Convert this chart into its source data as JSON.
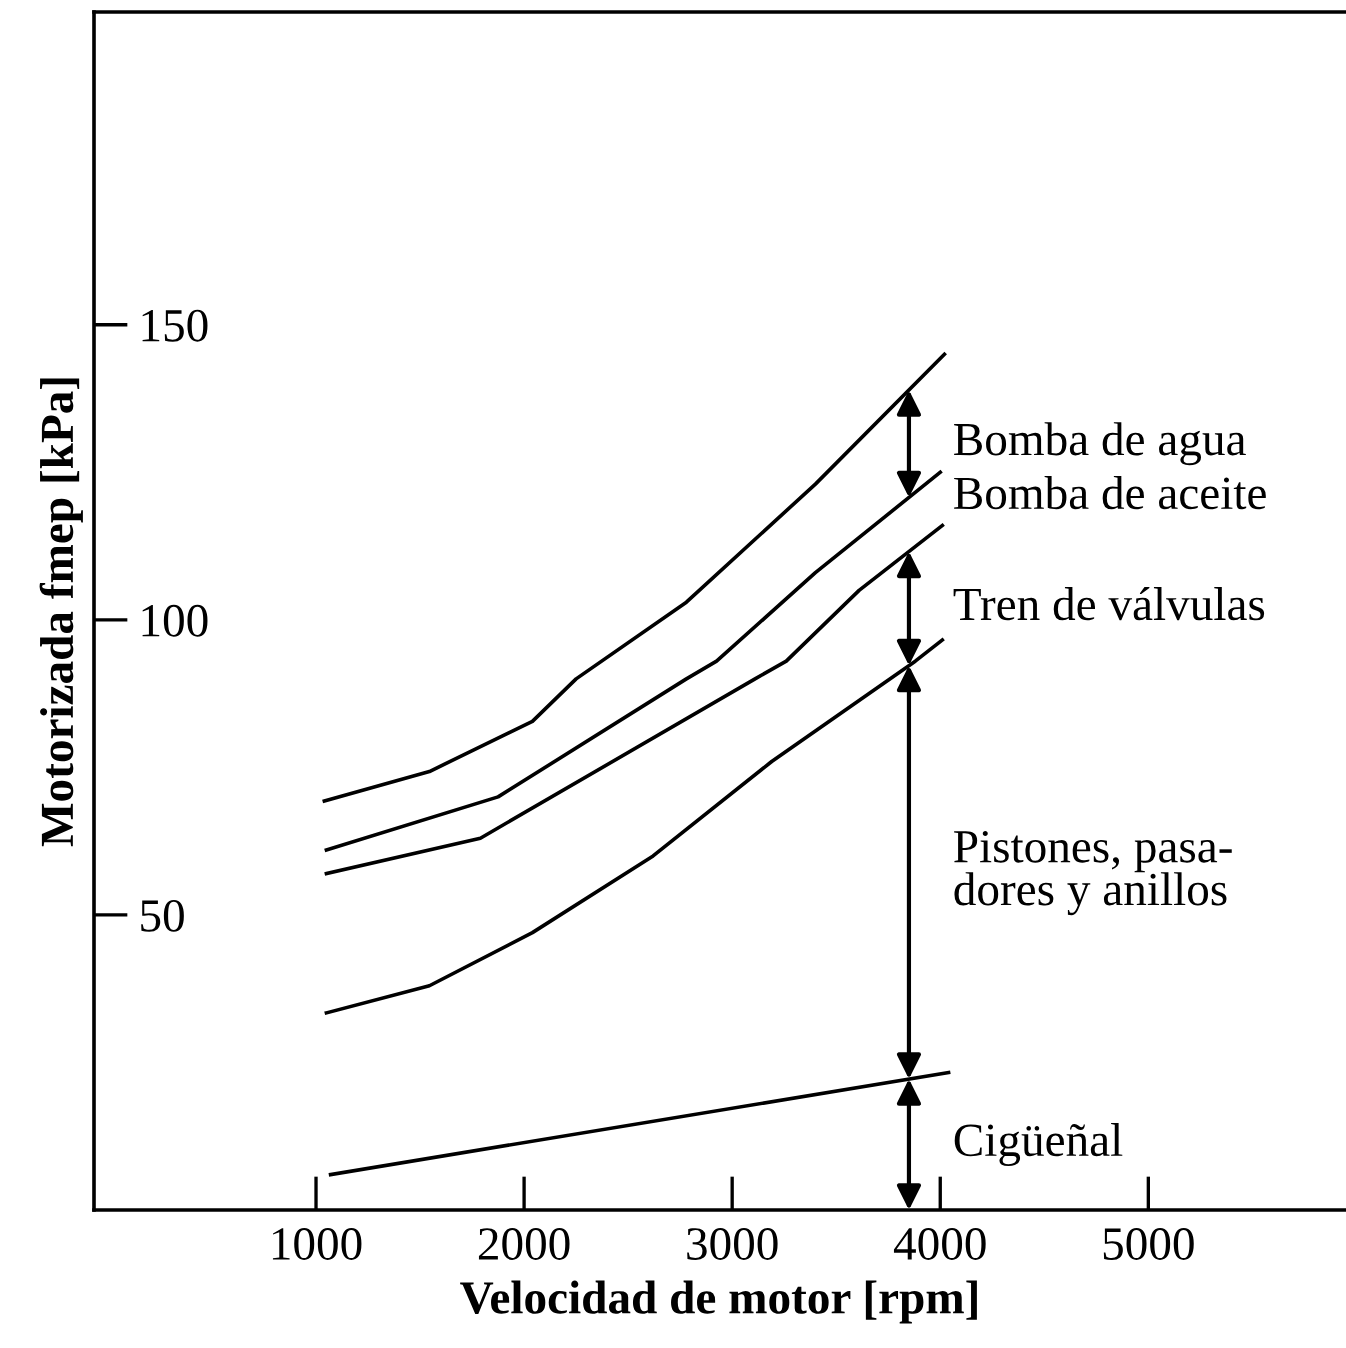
{
  "chart_data": {
    "type": "line",
    "xlabel": "Velocidad de motor [rpm]",
    "ylabel": "Motorizada fmep [kPa]",
    "xlim": [
      -67,
      5950
    ],
    "ylim": [
      0,
      203
    ],
    "xticks": [
      1000,
      2000,
      3000,
      4000,
      5000
    ],
    "yticks": [
      50,
      100,
      150
    ],
    "grid": false,
    "legend": false,
    "marker": "none",
    "line_style": "solid",
    "series": [
      {
        "color": "#000000",
        "x": [
          1040,
          1545,
          2040,
          2250,
          2780,
          3400,
          4020
        ],
        "values": [
          69.3,
          74.3,
          82.8,
          90,
          103,
          123,
          145
        ]
      },
      {
        "color": "#000000",
        "x": [
          1050,
          1875,
          2780,
          2925,
          3400,
          4000
        ],
        "values": [
          61,
          70,
          90,
          93,
          108,
          125
        ]
      },
      {
        "color": "#000000",
        "x": [
          1050,
          1790,
          3110,
          3260,
          3610,
          4010
        ],
        "values": [
          57,
          63,
          90,
          93,
          105,
          116
        ]
      },
      {
        "color": "#000000",
        "x": [
          1050,
          1545,
          2040,
          2620,
          3190,
          3880,
          4010
        ],
        "values": [
          33.4,
          38,
          47,
          60,
          76,
          93,
          96.6
        ]
      },
      {
        "color": "#000000",
        "x": [
          1070,
          4040
        ],
        "values": [
          6,
          23.3
        ]
      }
    ],
    "annotations": [
      "Bomba de agua",
      "Bomba de aceite",
      "Tren de válvulas",
      "Pistones, pasa-\ndores y anillos",
      "Cigüeñal"
    ]
  }
}
